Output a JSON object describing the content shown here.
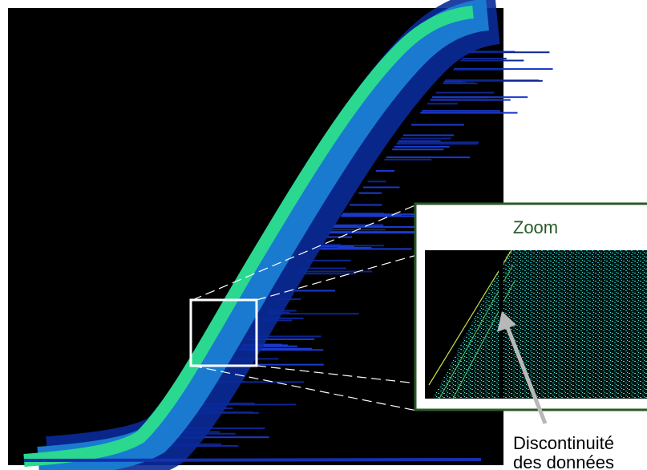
{
  "zoom_label": "Zoom",
  "annotation": {
    "lines": [
      "Discontinuité",
      "des données"
    ]
  }
}
